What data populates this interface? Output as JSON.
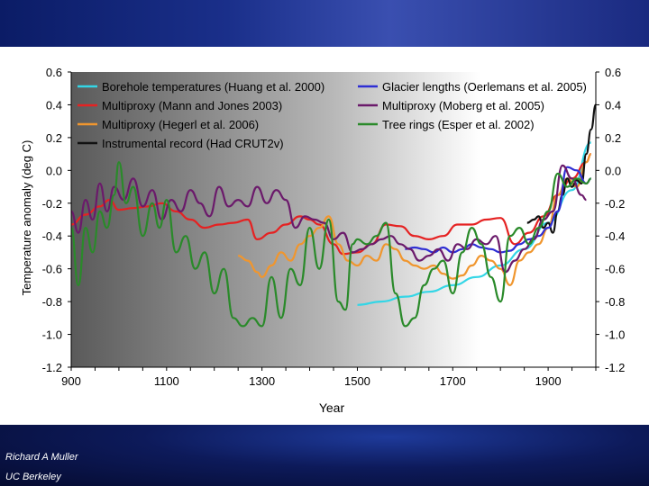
{
  "credits": {
    "name": "Richard A Muller",
    "org": "UC Berkeley"
  },
  "chart_data": {
    "type": "line",
    "xlabel": "Year",
    "ylabel": "Temperature anomaly (deg C)",
    "xlim": [
      900,
      2000
    ],
    "ylim": [
      -1.2,
      0.6
    ],
    "x_ticks": [
      900,
      1100,
      1300,
      1500,
      1700,
      1900
    ],
    "y_ticks": [
      0.6,
      0.4,
      0.2,
      0.0,
      -0.2,
      -0.4,
      -0.6,
      -0.8,
      -1.0,
      -1.2
    ],
    "y_tick_labels": [
      "0.6",
      "0.4",
      "0.2",
      "0.0",
      "-0.2",
      "-0.4",
      "-0.6",
      "-0.8",
      "-1.0",
      "-1.2"
    ],
    "x_tick_labels": [
      "900",
      "1100",
      "1300",
      "1500",
      "1700",
      "1900"
    ],
    "background": "gradient dark grey (left) to white (right)",
    "legend_position": "top",
    "series": [
      {
        "name": "Borehole temperatures (Huang et al. 2000)",
        "color": "#33d6e6",
        "x": [
          1500,
          1550,
          1600,
          1650,
          1700,
          1750,
          1800,
          1850,
          1900,
          1950,
          1990
        ],
        "y": [
          -0.82,
          -0.8,
          -0.77,
          -0.74,
          -0.7,
          -0.65,
          -0.58,
          -0.48,
          -0.32,
          -0.12,
          0.17
        ]
      },
      {
        "name": "Multiproxy (Mann and Jones 2003)",
        "color": "#e52222",
        "x": [
          900,
          930,
          960,
          980,
          1000,
          1030,
          1060,
          1090,
          1120,
          1150,
          1180,
          1210,
          1240,
          1270,
          1290,
          1320,
          1350,
          1380,
          1400,
          1420,
          1450,
          1470,
          1500,
          1530,
          1560,
          1590,
          1620,
          1650,
          1680,
          1710,
          1740,
          1770,
          1800,
          1830,
          1860,
          1890,
          1920,
          1950,
          1980,
          1990
        ],
        "y": [
          -0.33,
          -0.27,
          -0.22,
          -0.18,
          -0.24,
          -0.23,
          -0.22,
          -0.2,
          -0.25,
          -0.3,
          -0.35,
          -0.33,
          -0.32,
          -0.3,
          -0.42,
          -0.38,
          -0.33,
          -0.28,
          -0.3,
          -0.33,
          -0.45,
          -0.51,
          -0.5,
          -0.45,
          -0.33,
          -0.34,
          -0.4,
          -0.42,
          -0.4,
          -0.33,
          -0.33,
          -0.3,
          -0.29,
          -0.45,
          -0.38,
          -0.28,
          -0.15,
          -0.05,
          0.05,
          0.1
        ]
      },
      {
        "name": "Multiproxy (Hegerl et al. 2006)",
        "color": "#f0962e",
        "x": [
          1250,
          1270,
          1290,
          1300,
          1320,
          1340,
          1360,
          1380,
          1400,
          1420,
          1440,
          1460,
          1480,
          1500,
          1520,
          1540,
          1560,
          1580,
          1600,
          1620,
          1640,
          1660,
          1680,
          1700,
          1720,
          1740,
          1760,
          1780,
          1800,
          1820,
          1840,
          1860,
          1880,
          1900,
          1920,
          1940,
          1960,
          1980,
          1990
        ],
        "y": [
          -0.52,
          -0.55,
          -0.62,
          -0.65,
          -0.58,
          -0.5,
          -0.55,
          -0.45,
          -0.4,
          -0.35,
          -0.28,
          -0.45,
          -0.55,
          -0.58,
          -0.52,
          -0.55,
          -0.45,
          -0.48,
          -0.55,
          -0.58,
          -0.6,
          -0.58,
          -0.63,
          -0.66,
          -0.64,
          -0.58,
          -0.52,
          -0.55,
          -0.6,
          -0.7,
          -0.55,
          -0.5,
          -0.45,
          -0.35,
          -0.15,
          -0.05,
          -0.1,
          0.05,
          0.1
        ]
      },
      {
        "name": "Instrumental record (Had CRUT2v)",
        "color": "#111111",
        "x": [
          1856,
          1870,
          1880,
          1890,
          1900,
          1910,
          1920,
          1930,
          1940,
          1950,
          1960,
          1970,
          1980,
          1990,
          2000
        ],
        "y": [
          -0.32,
          -0.3,
          -0.28,
          -0.35,
          -0.32,
          -0.38,
          -0.25,
          -0.15,
          -0.05,
          -0.1,
          -0.06,
          -0.08,
          0.1,
          0.25,
          0.4
        ]
      },
      {
        "name": "Glacier lengths (Oerlemans et al. 2005)",
        "color": "#2e2ed4",
        "x": [
          1600,
          1620,
          1640,
          1660,
          1680,
          1700,
          1720,
          1740,
          1760,
          1780,
          1800,
          1820,
          1840,
          1860,
          1880,
          1900,
          1920,
          1940,
          1960,
          1980,
          1990
        ],
        "y": [
          -0.48,
          -0.47,
          -0.48,
          -0.5,
          -0.47,
          -0.5,
          -0.48,
          -0.45,
          -0.47,
          -0.48,
          -0.5,
          -0.49,
          -0.45,
          -0.42,
          -0.4,
          -0.35,
          -0.25,
          0.02,
          0.0,
          -0.08,
          -0.05
        ]
      },
      {
        "name": "Multiproxy (Moberg et al. 2005)",
        "color": "#6b1a6b",
        "x": [
          900,
          915,
          930,
          945,
          960,
          975,
          990,
          1010,
          1030,
          1050,
          1070,
          1090,
          1110,
          1130,
          1150,
          1170,
          1190,
          1210,
          1230,
          1250,
          1270,
          1290,
          1310,
          1330,
          1350,
          1370,
          1390,
          1410,
          1430,
          1450,
          1470,
          1490,
          1510,
          1530,
          1550,
          1570,
          1590,
          1610,
          1630,
          1650,
          1670,
          1690,
          1710,
          1730,
          1750,
          1770,
          1790,
          1810,
          1830,
          1850,
          1870,
          1890,
          1910,
          1930,
          1950,
          1970,
          1980
        ],
        "y": [
          -0.25,
          -0.38,
          -0.18,
          -0.3,
          -0.08,
          -0.25,
          -0.1,
          -0.18,
          -0.05,
          -0.22,
          -0.12,
          -0.3,
          -0.18,
          -0.25,
          -0.12,
          -0.2,
          -0.28,
          -0.1,
          -0.22,
          -0.18,
          -0.22,
          -0.1,
          -0.2,
          -0.12,
          -0.18,
          -0.35,
          -0.28,
          -0.3,
          -0.32,
          -0.42,
          -0.38,
          -0.5,
          -0.48,
          -0.45,
          -0.42,
          -0.4,
          -0.45,
          -0.48,
          -0.55,
          -0.52,
          -0.48,
          -0.55,
          -0.45,
          -0.48,
          -0.42,
          -0.45,
          -0.4,
          -0.62,
          -0.55,
          -0.48,
          -0.42,
          -0.3,
          -0.25,
          0.03,
          -0.05,
          -0.15,
          -0.18
        ]
      },
      {
        "name": "Tree rings (Esper et al. 2002)",
        "color": "#2a8a2a",
        "x": [
          900,
          915,
          930,
          945,
          960,
          975,
          990,
          1000,
          1015,
          1030,
          1050,
          1070,
          1085,
          1100,
          1120,
          1140,
          1160,
          1180,
          1200,
          1220,
          1240,
          1260,
          1280,
          1300,
          1320,
          1340,
          1360,
          1380,
          1400,
          1420,
          1440,
          1460,
          1475,
          1490,
          1500,
          1520,
          1540,
          1560,
          1580,
          1600,
          1620,
          1640,
          1660,
          1680,
          1700,
          1720,
          1740,
          1760,
          1780,
          1800,
          1820,
          1840,
          1860,
          1880,
          1900,
          1920,
          1940,
          1960,
          1980,
          1990
        ],
        "y": [
          -0.35,
          -0.7,
          -0.35,
          -0.5,
          -0.25,
          -0.35,
          -0.15,
          0.05,
          -0.2,
          -0.1,
          -0.4,
          -0.2,
          -0.35,
          -0.18,
          -0.5,
          -0.4,
          -0.6,
          -0.5,
          -0.75,
          -0.6,
          -0.9,
          -0.95,
          -0.9,
          -0.95,
          -0.65,
          -0.9,
          -0.6,
          -0.7,
          -0.35,
          -0.6,
          -0.3,
          -0.8,
          -0.85,
          -0.45,
          -0.42,
          -0.45,
          -0.4,
          -0.32,
          -0.75,
          -0.95,
          -0.9,
          -0.7,
          -0.6,
          -0.55,
          -0.75,
          -0.5,
          -0.35,
          -0.45,
          -0.65,
          -0.8,
          -0.4,
          -0.35,
          -0.45,
          -0.35,
          -0.25,
          -0.02,
          -0.1,
          -0.05,
          -0.08,
          -0.05
        ]
      }
    ]
  }
}
